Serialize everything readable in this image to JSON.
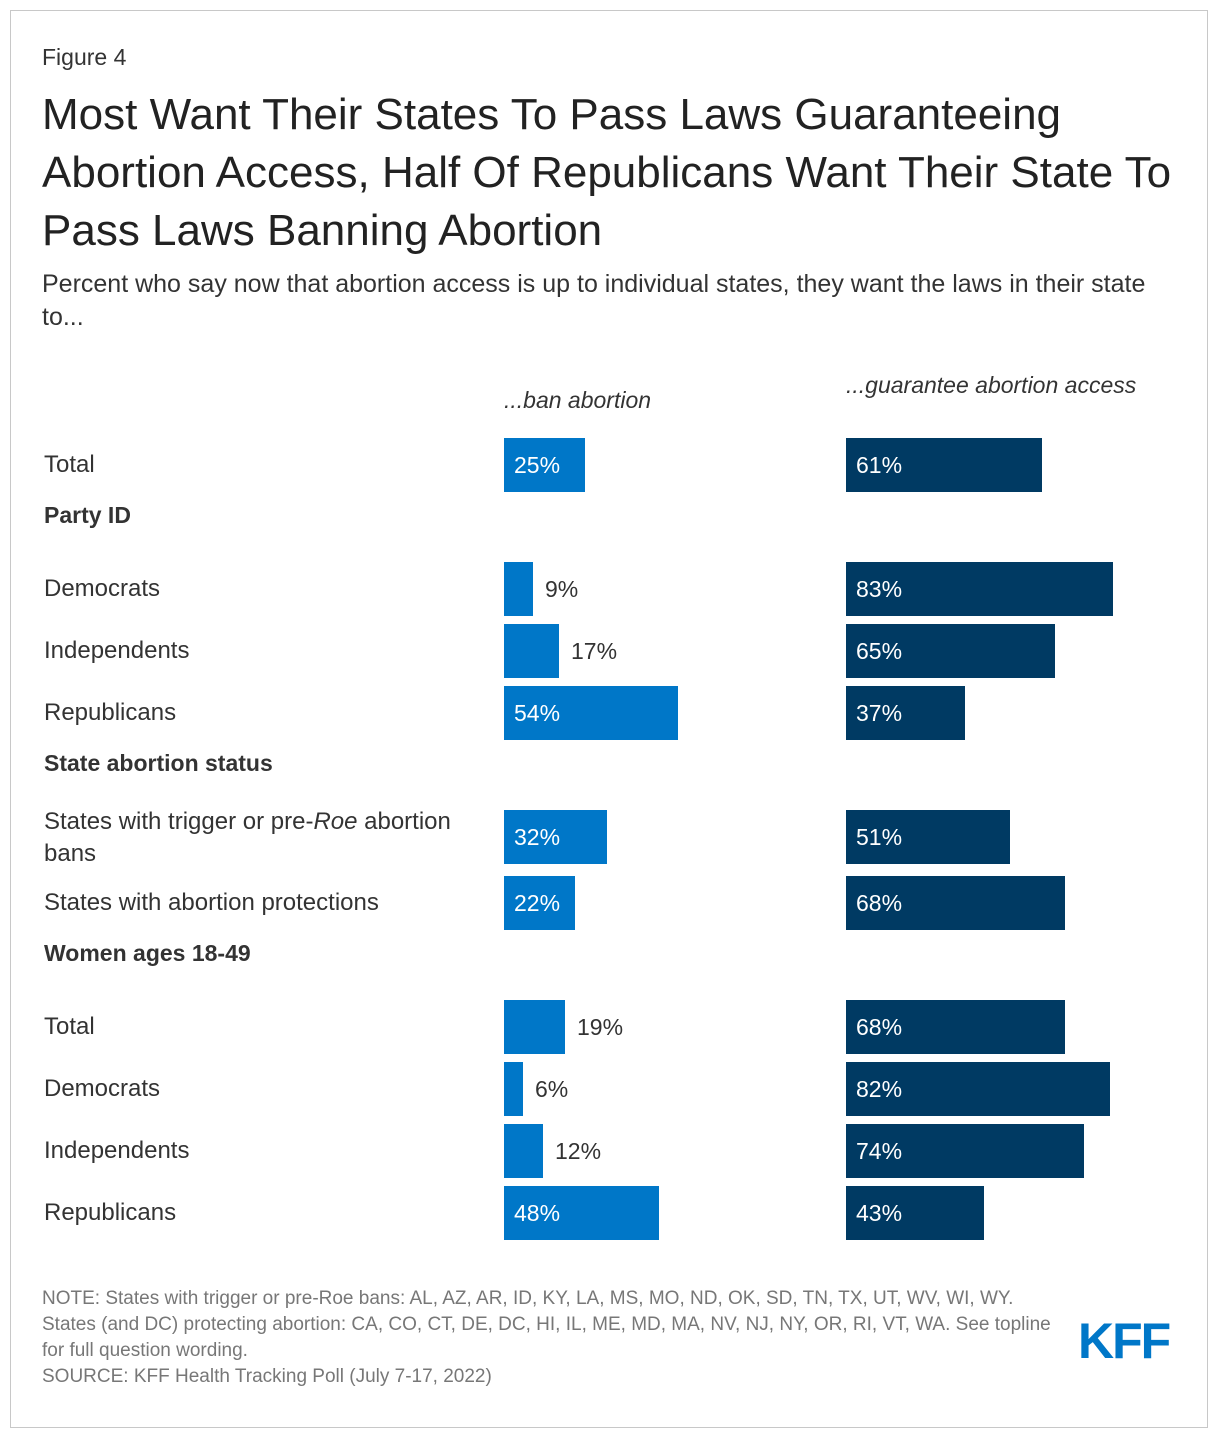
{
  "figure_label": "Figure 4",
  "title": "Most Want Their States To Pass Laws Guaranteeing Abortion Access, Half Of Republicans Want Their State To Pass Laws Banning Abortion",
  "subtitle": "Percent who say now that abortion access is up to individual states, they want the laws in their state to...",
  "note": "NOTE: States with trigger or pre-Roe bans: AL, AZ, AR, ID, KY, LA, MS, MO, ND, OK, SD, TN, TX, UT, WV, WI, WY. States (and DC) protecting abortion: CA, CO, CT, DE, DC, HI, IL, ME, MD, MA, NV, NJ, NY, OR, RI, VT, WA. See topline for full question wording.",
  "source": "SOURCE: KFF Health Tracking Poll (July 7-17, 2022)",
  "logo_text": "KFF",
  "colors": {
    "ban": "#0077c8",
    "guarantee": "#003a63"
  },
  "chart_data": {
    "type": "bar",
    "orientation": "horizontal",
    "unit": "%",
    "series": [
      {
        "name": "...ban abortion",
        "color": "#0077c8"
      },
      {
        "name": "...guarantee abortion access",
        "color": "#003a63"
      }
    ],
    "groups": [
      {
        "label": "",
        "rows": [
          {
            "label": "Total",
            "ban": 25,
            "guarantee": 61
          }
        ]
      },
      {
        "label": "Party ID",
        "rows": [
          {
            "label": "Democrats",
            "ban": 9,
            "guarantee": 83
          },
          {
            "label": "Independents",
            "ban": 17,
            "guarantee": 65
          },
          {
            "label": "Republicans",
            "ban": 54,
            "guarantee": 37
          }
        ]
      },
      {
        "label": "State abortion status",
        "rows": [
          {
            "label": "States with trigger or pre-Roe abortion bans",
            "ban": 32,
            "guarantee": 51
          },
          {
            "label": "States with abortion protections",
            "ban": 22,
            "guarantee": 68
          }
        ]
      },
      {
        "label": "Women ages 18-49",
        "rows": [
          {
            "label": "Total",
            "ban": 19,
            "guarantee": 68
          },
          {
            "label": "Democrats",
            "ban": 6,
            "guarantee": 82
          },
          {
            "label": "Independents",
            "ban": 12,
            "guarantee": 74
          },
          {
            "label": "Republicans",
            "ban": 48,
            "guarantee": 43
          }
        ]
      }
    ]
  }
}
